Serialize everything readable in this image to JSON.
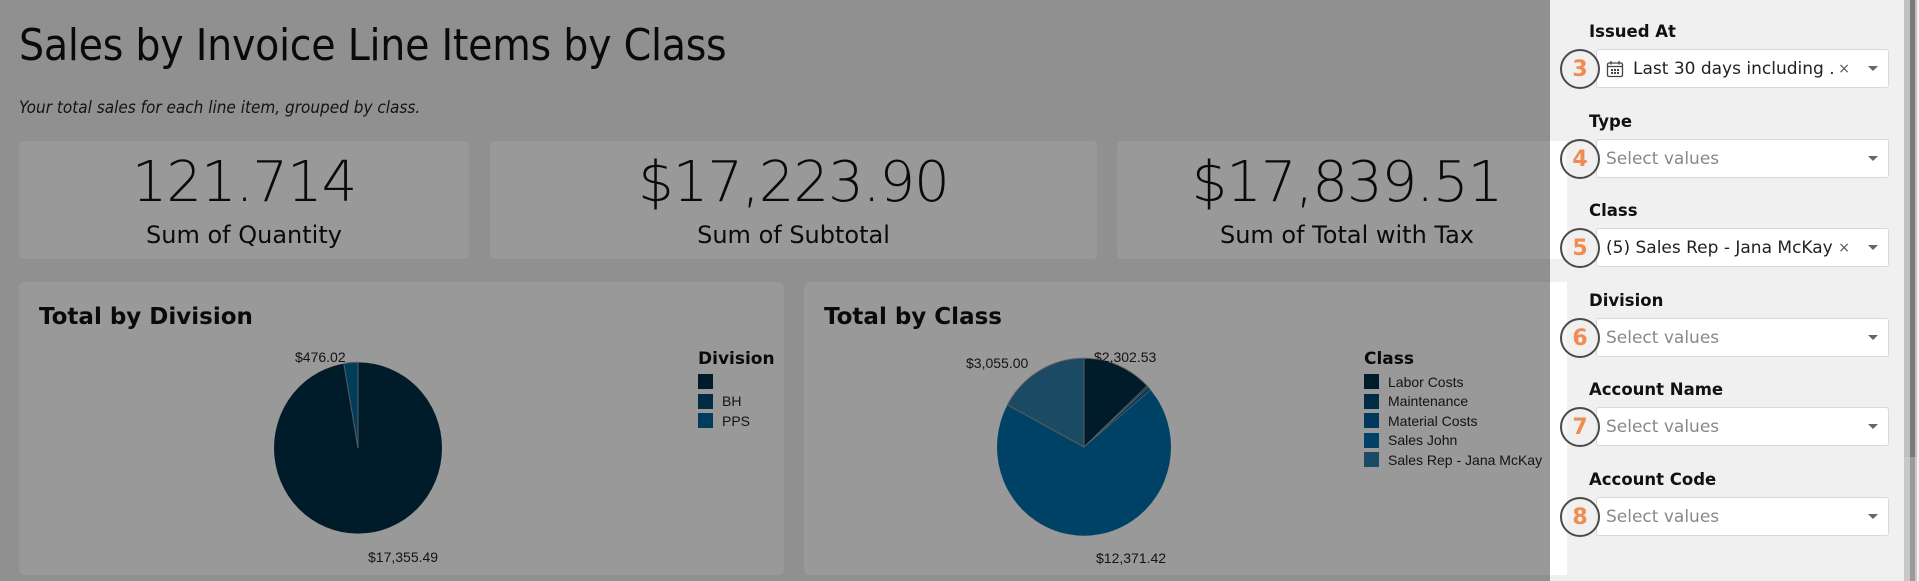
{
  "page": {
    "title": "Sales by Invoice Line Items by Class",
    "subtitle": "Your total sales for each line item, grouped by class."
  },
  "kpis": [
    {
      "value": "121.714",
      "label": "Sum of Quantity"
    },
    {
      "value": "$17,223.90",
      "label": "Sum of Subtotal"
    },
    {
      "value": "$17,839.51",
      "label": "Sum of Total with Tax"
    }
  ],
  "charts": {
    "division": {
      "title": "Total by Division",
      "legend_title": "Division",
      "legend": [
        {
          "label": "",
          "color": "#002d46"
        },
        {
          "label": "BH",
          "color": "#004b73"
        },
        {
          "label": "PPS",
          "color": "#006699"
        }
      ],
      "labels": {
        "pps": "$476.02",
        "blank": "$17,355.49"
      }
    },
    "class": {
      "title": "Total by Class",
      "legend_title": "Class",
      "legend": [
        {
          "label": "Labor Costs",
          "color": "#002d46"
        },
        {
          "label": "Maintenance",
          "color": "#004b73"
        },
        {
          "label": "Material Costs",
          "color": "#00609a"
        },
        {
          "label": "Sales John",
          "color": "#006ea8"
        },
        {
          "label": "Sales Rep - Jana McKay",
          "color": "#2e7ca8"
        }
      ],
      "labels": {
        "labor": "$2,302.53",
        "sales_john": "$12,371.42",
        "jana": "$3,055.00"
      }
    }
  },
  "chart_data": [
    {
      "type": "pie",
      "title": "Total by Division",
      "legend_title": "Division",
      "legend_position": "right",
      "categories": [
        "(blank)",
        "BH",
        "PPS"
      ],
      "values": [
        17355.49,
        8.0,
        476.02
      ],
      "data_labels": [
        "$17,355.49",
        "",
        "$476.02"
      ]
    },
    {
      "type": "pie",
      "title": "Total by Class",
      "legend_title": "Class",
      "legend_position": "right",
      "categories": [
        "Labor Costs",
        "Maintenance",
        "Material Costs",
        "Sales John",
        "Sales Rep - Jana McKay"
      ],
      "values": [
        2302.53,
        30.0,
        80.56,
        12371.42,
        3055.0
      ],
      "data_labels": [
        "$2,302.53",
        "",
        "",
        "$12,371.42",
        "$3,055.00"
      ]
    }
  ],
  "filters": [
    {
      "label": "Issued At",
      "badge": "3",
      "value": "Last 30 days including ...",
      "placeholder": "",
      "has_clear": true,
      "icon": "calendar-icon"
    },
    {
      "label": "Type",
      "badge": "4",
      "value": "",
      "placeholder": "Select values",
      "has_clear": false
    },
    {
      "label": "Class",
      "badge": "5",
      "value": "(5) Sales Rep - Jana McKay,...",
      "placeholder": "",
      "has_clear": true
    },
    {
      "label": "Division",
      "badge": "6",
      "value": "",
      "placeholder": "Select values",
      "has_clear": false
    },
    {
      "label": "Account Name",
      "badge": "7",
      "value": "",
      "placeholder": "Select values",
      "has_clear": false
    },
    {
      "label": "Account Code",
      "badge": "8",
      "value": "",
      "placeholder": "Select values",
      "has_clear": false
    }
  ],
  "icons": {
    "clear": "×"
  }
}
